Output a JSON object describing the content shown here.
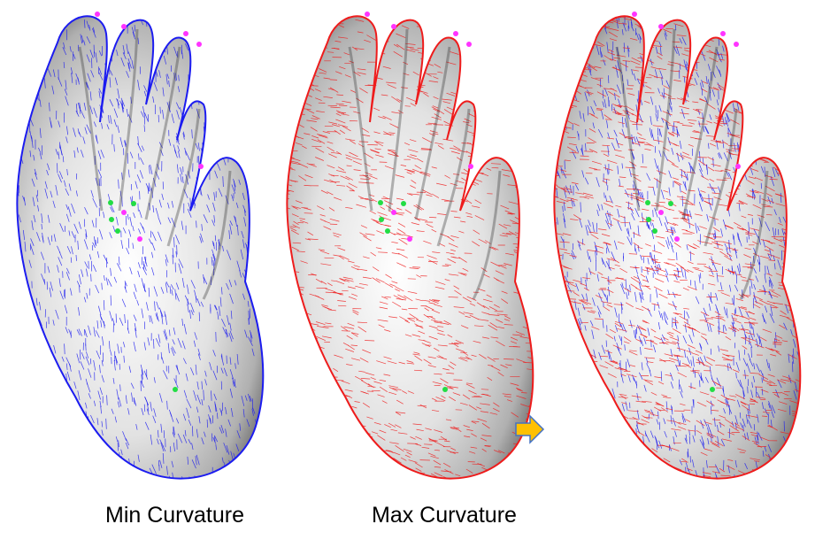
{
  "captions": {
    "min": "Min Curvature",
    "max": "Max Curvature"
  },
  "panels": [
    {
      "id": "min-curvature-panel",
      "field": "min",
      "colors": [
        "#1c1cf0"
      ]
    },
    {
      "id": "max-curvature-panel",
      "field": "max",
      "colors": [
        "#ee1c1c"
      ]
    },
    {
      "id": "combined-curvature-panel",
      "field": "both",
      "colors": [
        "#1c1cf0",
        "#ee1c1c"
      ]
    }
  ],
  "arrow": {
    "icon": "right-arrow-icon",
    "fill": "#ffc000",
    "stroke": "#4472c4"
  },
  "marker_colors": {
    "magenta": "#ff33ff",
    "green": "#22dd44"
  },
  "surface_shade": {
    "light": "#ffffff",
    "mid": "#c8c8c8",
    "dark": "#5a5a5a"
  }
}
